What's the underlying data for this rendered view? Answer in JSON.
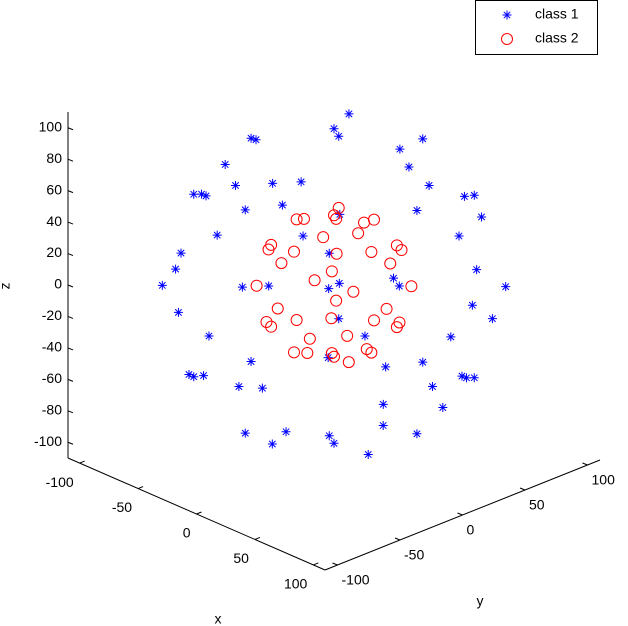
{
  "chart_data": {
    "type": "scatter3d",
    "xlabel": "x",
    "ylabel": "y",
    "zlabel": "z",
    "xlim": [
      -110,
      110
    ],
    "ylim": [
      -110,
      110
    ],
    "zlim": [
      -110,
      110
    ],
    "xticks": [
      -100,
      -50,
      0,
      50,
      100
    ],
    "yticks": [
      -100,
      -50,
      0,
      50,
      100
    ],
    "zticks": [
      -100,
      -80,
      -60,
      -40,
      -20,
      0,
      20,
      40,
      60,
      80,
      100
    ],
    "legend": "top-right",
    "series": [
      {
        "name": "class 1",
        "color": "#0000ff",
        "marker": "star",
        "x": [
          100,
          0,
          0,
          -100,
          0,
          0,
          71,
          71,
          -71,
          -71,
          71,
          -71,
          0,
          0,
          71,
          -71,
          0,
          0,
          58,
          58,
          -58,
          -58,
          58,
          58,
          -58,
          -58,
          35,
          -30,
          20,
          -40,
          10,
          -25,
          40,
          -10,
          90,
          85,
          92,
          88,
          -90,
          -85,
          -92,
          -88,
          30,
          -40,
          20,
          -30,
          35,
          -40,
          20,
          -30,
          50,
          -50,
          80,
          -80,
          60,
          -60,
          20,
          -20,
          45,
          -45,
          95,
          -95,
          10,
          -10,
          65,
          -65,
          40,
          -40
        ],
        "y": [
          0,
          100,
          -100,
          0,
          0,
          0,
          71,
          -71,
          71,
          -71,
          0,
          0,
          71,
          -71,
          0,
          0,
          71,
          -71,
          58,
          -58,
          58,
          -58,
          58,
          -58,
          58,
          -58,
          20,
          40,
          -45,
          -25,
          30,
          -15,
          -10,
          -40,
          30,
          -40,
          20,
          -30,
          35,
          -45,
          -20,
          30,
          90,
          85,
          92,
          88,
          -90,
          -85,
          -92,
          -88,
          80,
          -80,
          -50,
          50,
          20,
          -20,
          -60,
          60,
          45,
          -45,
          -10,
          10,
          95,
          -95,
          -65,
          65,
          65,
          -65
        ],
        "z": [
          0,
          0,
          0,
          0,
          100,
          -100,
          0,
          0,
          0,
          0,
          71,
          71,
          71,
          71,
          -71,
          -71,
          -71,
          -71,
          58,
          58,
          58,
          58,
          -58,
          -58,
          -58,
          -58,
          92,
          87,
          87,
          88,
          -95,
          -96,
          -91,
          -91,
          30,
          -35,
          -35,
          38,
          25,
          -30,
          35,
          -38,
          25,
          -35,
          -35,
          38,
          -25,
          35,
          35,
          -38,
          -30,
          20,
          10,
          -10,
          77,
          -77,
          77,
          -77,
          -77,
          77,
          -30,
          30,
          30,
          -30,
          40,
          -40,
          -65,
          65
        ]
      },
      {
        "name": "class 2",
        "color": "#ff0000",
        "marker": "circle",
        "x": [
          45,
          -45,
          0,
          0,
          0,
          0,
          32,
          32,
          -32,
          -32,
          32,
          -32,
          0,
          0,
          32,
          -32,
          0,
          0,
          26,
          26,
          -26,
          -26,
          26,
          26,
          -26,
          -26,
          15,
          -12,
          10,
          -15,
          12,
          -10,
          18,
          -8,
          40,
          -40,
          15,
          -15,
          38,
          -38,
          20,
          -20
        ],
        "y": [
          0,
          0,
          45,
          -45,
          0,
          0,
          32,
          -32,
          32,
          -32,
          0,
          0,
          32,
          -32,
          0,
          0,
          32,
          -32,
          26,
          -26,
          26,
          -26,
          26,
          -26,
          26,
          -26,
          10,
          15,
          -18,
          -10,
          15,
          -12,
          -5,
          18,
          15,
          -15,
          40,
          -40,
          -20,
          20,
          -38,
          38
        ],
        "z": [
          0,
          0,
          0,
          0,
          45,
          -45,
          0,
          0,
          0,
          0,
          32,
          32,
          32,
          32,
          -32,
          -32,
          -32,
          -32,
          26,
          26,
          26,
          26,
          -26,
          -26,
          -26,
          -26,
          42,
          41,
          40,
          41,
          -41,
          -42,
          -41,
          -40,
          -15,
          15,
          15,
          -15,
          15,
          -15,
          -15,
          15
        ]
      }
    ]
  }
}
